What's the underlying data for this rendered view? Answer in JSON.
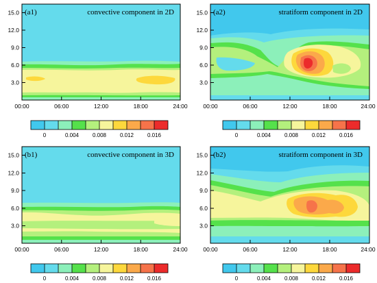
{
  "chart_data": [
    {
      "type": "heatmap",
      "panel_label": "(a1)",
      "title": "convective component  in 2D",
      "x_ticks": [
        "00:00",
        "06:00",
        "12:00",
        "18:00",
        "24:00"
      ],
      "y_ticks": [
        "3.0",
        "6.0",
        "9.0",
        "12.0",
        "15.0"
      ],
      "xlim": [
        0,
        24
      ],
      "ylim": [
        0,
        16.5
      ],
      "colorbar": {
        "colors": [
          "#41c8ed",
          "#64dbec",
          "#8cf0ba",
          "#55e14b",
          "#b4f07d",
          "#f6f59c",
          "#fdd83c",
          "#fba94a",
          "#f6734a",
          "#ec2b2b"
        ],
        "levels": [
          -0.002,
          0,
          0.002,
          0.004,
          0.006,
          0.008,
          0.01,
          0.012,
          0.014,
          0.016,
          0.018
        ],
        "labels": [
          "0",
          "0.004",
          "0.008",
          "0.012",
          "0.016"
        ]
      }
    },
    {
      "type": "heatmap",
      "panel_label": "(a2)",
      "title": "stratiform component  in 2D",
      "x_ticks": [
        "00:00",
        "06:00",
        "12:00",
        "18:00",
        "24:00"
      ],
      "y_ticks": [
        "3.0",
        "6.0",
        "9.0",
        "12.0",
        "15.0"
      ],
      "xlim": [
        0,
        24
      ],
      "ylim": [
        0,
        16.5
      ],
      "colorbar": {
        "colors": [
          "#41c8ed",
          "#64dbec",
          "#8cf0ba",
          "#55e14b",
          "#b4f07d",
          "#f6f59c",
          "#fdd83c",
          "#fba94a",
          "#f6734a",
          "#ec2b2b"
        ],
        "levels": [
          -0.002,
          0,
          0.002,
          0.004,
          0.006,
          0.008,
          0.01,
          0.012,
          0.014,
          0.016,
          0.018
        ],
        "labels": [
          "0",
          "0.004",
          "0.008",
          "0.012",
          "0.016"
        ]
      }
    },
    {
      "type": "heatmap",
      "panel_label": "(b1)",
      "title": "convective component  in 3D",
      "x_ticks": [
        "00:00",
        "06:00",
        "12:00",
        "18:00",
        "24:00"
      ],
      "y_ticks": [
        "3.0",
        "6.0",
        "9.0",
        "12.0",
        "15.0"
      ],
      "xlim": [
        0,
        24
      ],
      "ylim": [
        0,
        16.5
      ],
      "colorbar": {
        "colors": [
          "#41c8ed",
          "#64dbec",
          "#8cf0ba",
          "#55e14b",
          "#b4f07d",
          "#f6f59c",
          "#fdd83c",
          "#fba94a",
          "#f6734a",
          "#ec2b2b"
        ],
        "levels": [
          -0.002,
          0,
          0.002,
          0.004,
          0.006,
          0.008,
          0.01,
          0.012,
          0.014,
          0.016,
          0.018
        ],
        "labels": [
          "0",
          "0.004",
          "0.008",
          "0.012",
          "0.016"
        ]
      }
    },
    {
      "type": "heatmap",
      "panel_label": "(b2)",
      "title": "stratiform component  in 3D",
      "x_ticks": [
        "00:00",
        "06:00",
        "12:00",
        "18:00",
        "24:00"
      ],
      "y_ticks": [
        "3.0",
        "6.0",
        "9.0",
        "12.0",
        "15.0"
      ],
      "xlim": [
        0,
        24
      ],
      "ylim": [
        0,
        16.5
      ],
      "colorbar": {
        "colors": [
          "#41c8ed",
          "#64dbec",
          "#8cf0ba",
          "#55e14b",
          "#b4f07d",
          "#f6f59c",
          "#fdd83c",
          "#fba94a",
          "#f6734a",
          "#ec2b2b"
        ],
        "levels": [
          -0.002,
          0,
          0.002,
          0.004,
          0.006,
          0.008,
          0.01,
          0.012,
          0.014,
          0.016,
          0.018
        ],
        "labels": [
          "0",
          "0.004",
          "0.008",
          "0.012",
          "0.016"
        ]
      }
    }
  ]
}
